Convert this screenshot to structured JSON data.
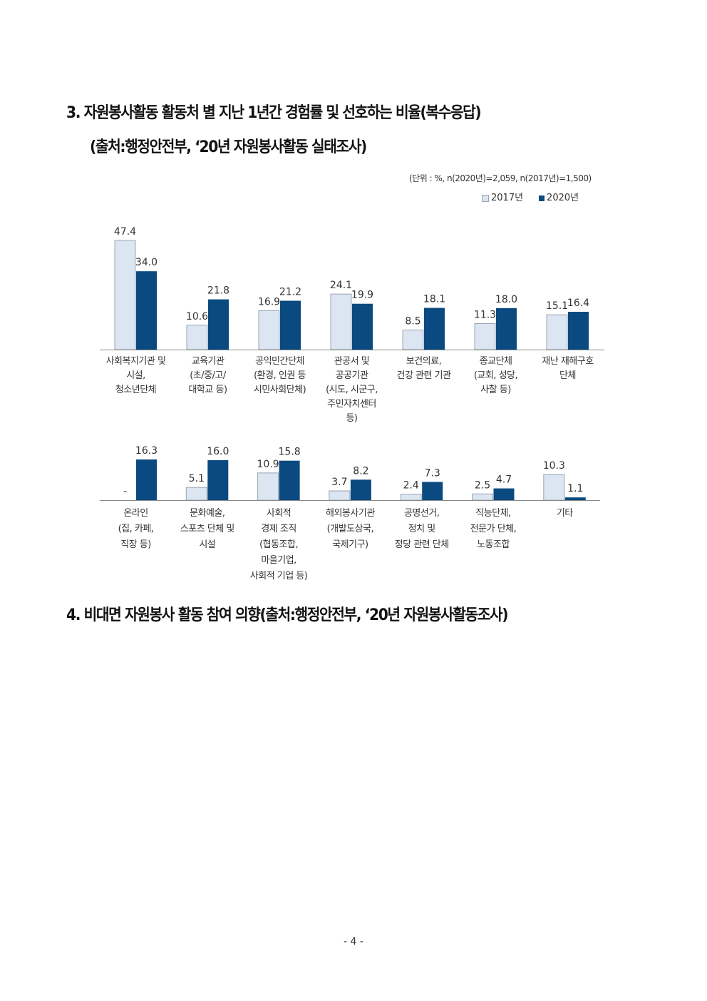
{
  "section3": {
    "title": "3. 자원봉사활동 활동처 별 지난 1년간 경험률 및 선호하는 비율(복수응답)",
    "source": "(출처:행정안전부,  ‘20년 자원봉사활동 실태조사)",
    "unit_note": "(단위 : %, n(2020년)=2,059, n(2017년)=1,500)"
  },
  "section4": {
    "title": "4. 비대면 자원봉사 활동 참여 의향(출처:행정안전부,  ‘20년 자원봉사활동조사)"
  },
  "page_number": "- 4 -",
  "colors": {
    "y2017": "#dce6f2",
    "y2017_border": "#9aa5b1",
    "y2020": "#0b4a80"
  },
  "chart_data": [
    {
      "type": "bar",
      "legend": [
        "2017년",
        "2020년"
      ],
      "legend_placement": "top-right",
      "categories": [
        [
          "사회복지기관 및",
          "시설,",
          "청소년단체"
        ],
        [
          "교육기관",
          "(초/중/고/",
          "대학교 등)"
        ],
        [
          "공익민간단체",
          "(환경, 인권 등",
          "시민사회단체)"
        ],
        [
          "관공서 및",
          "공공기관",
          "(시도, 시군구,",
          "주민자치센터",
          "등)"
        ],
        [
          "보건의료,",
          "건강 관련 기관"
        ],
        [
          "종교단체",
          "(교회, 성당,",
          "사찰 등)"
        ],
        [
          "재난 재해구호",
          "단체"
        ]
      ],
      "series": [
        {
          "name": "2017년",
          "values": [
            47.4,
            10.6,
            16.9,
            24.1,
            8.5,
            11.3,
            15.1
          ],
          "labels": [
            "47.4",
            "10.6",
            "16.9",
            "24.1",
            "8.5",
            "11.3",
            "15.1"
          ]
        },
        {
          "name": "2020년",
          "values": [
            34.0,
            21.8,
            21.2,
            19.9,
            18.1,
            18.0,
            16.4
          ],
          "labels": [
            "34.0",
            "21.8",
            "21.2",
            "19.9",
            "18.1",
            "18.0",
            "16.4"
          ]
        }
      ],
      "grid": false
    },
    {
      "type": "bar",
      "categories": [
        [
          "온라인",
          "(집, 카페,",
          "직장 등)"
        ],
        [
          "문화예술,",
          "스포츠 단체 및",
          "시설"
        ],
        [
          "사회적",
          "경제 조직",
          "(협동조합,",
          "마을기업,",
          "사회적 기업 등)"
        ],
        [
          "해외봉사기관",
          "(개발도상국,",
          "국제기구)"
        ],
        [
          "공명선거,",
          "정치 및",
          "정당 관련 단체"
        ],
        [
          "직능단체,",
          "전문가 단체,",
          "노동조합"
        ],
        [
          "기타"
        ]
      ],
      "series": [
        {
          "name": "2017년",
          "values": [
            null,
            5.1,
            10.9,
            3.7,
            2.4,
            2.5,
            10.3
          ],
          "labels": [
            "-",
            "5.1",
            "10.9",
            "3.7",
            "2.4",
            "2.5",
            "10.3"
          ]
        },
        {
          "name": "2020년",
          "values": [
            16.3,
            16.0,
            15.8,
            8.2,
            7.3,
            4.7,
            1.1
          ],
          "labels": [
            "16.3",
            "16.0",
            "15.8",
            "8.2",
            "7.3",
            "4.7",
            "1.1"
          ]
        }
      ],
      "grid": false
    }
  ]
}
